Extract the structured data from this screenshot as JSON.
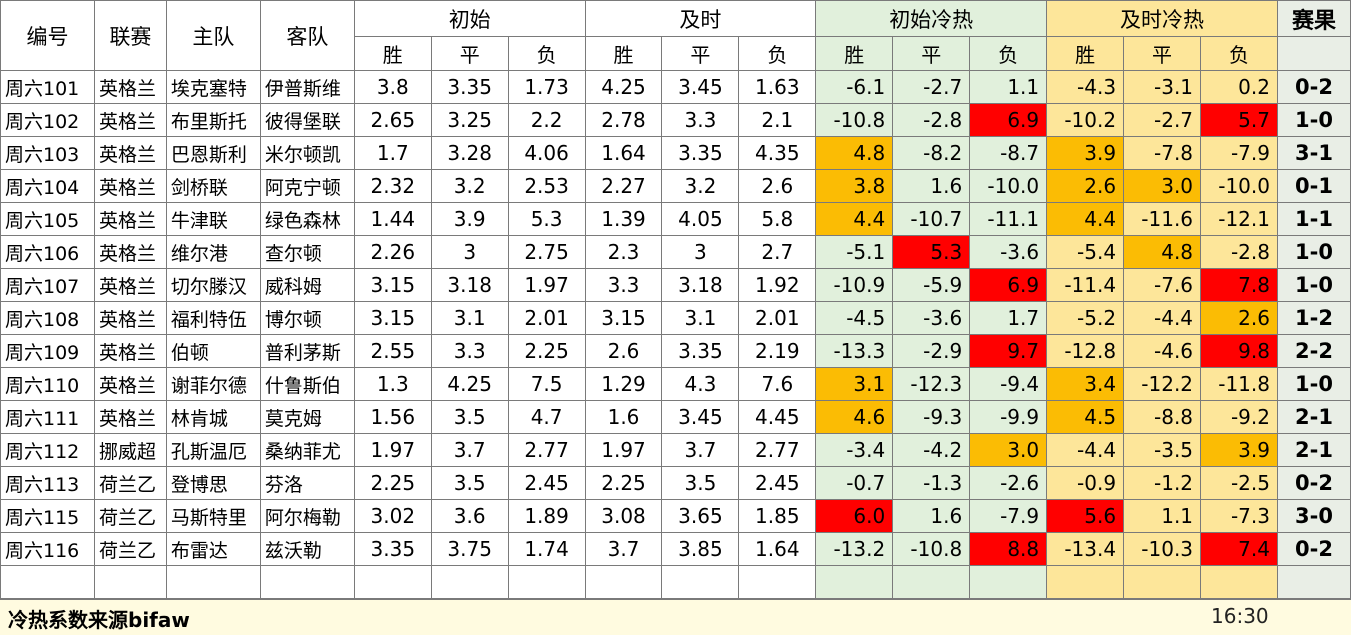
{
  "headers": {
    "id": "编号",
    "league": "联赛",
    "home": "主队",
    "away": "客队",
    "initial": "初始",
    "live": "及时",
    "initial_heat": "初始冷热",
    "live_heat": "及时冷热",
    "result": "赛果",
    "win": "胜",
    "draw": "平",
    "lose": "负"
  },
  "rows": [
    {
      "id": "周六101",
      "league": "英格兰",
      "home": "埃克塞特",
      "away": "伊普斯维",
      "i": [
        "3.8",
        "3.35",
        "1.73"
      ],
      "l": [
        "4.25",
        "3.45",
        "1.63"
      ],
      "ih": [
        "-6.1",
        "-2.7",
        "1.1"
      ],
      "lh": [
        "-4.3",
        "-3.1",
        "0.2"
      ],
      "r": "0-2"
    },
    {
      "id": "周六102",
      "league": "英格兰",
      "home": "布里斯托",
      "away": "彼得堡联",
      "i": [
        "2.65",
        "3.25",
        "2.2"
      ],
      "l": [
        "2.78",
        "3.3",
        "2.1"
      ],
      "ih": [
        "-10.8",
        "-2.8",
        "6.9"
      ],
      "lh": [
        "-10.2",
        "-2.7",
        "5.7"
      ],
      "r": "1-0"
    },
    {
      "id": "周六103",
      "league": "英格兰",
      "home": "巴恩斯利",
      "away": "米尔顿凯",
      "i": [
        "1.7",
        "3.28",
        "4.06"
      ],
      "l": [
        "1.64",
        "3.35",
        "4.35"
      ],
      "ih": [
        "4.8",
        "-8.2",
        "-8.7"
      ],
      "lh": [
        "3.9",
        "-7.8",
        "-7.9"
      ],
      "r": "3-1"
    },
    {
      "id": "周六104",
      "league": "英格兰",
      "home": "剑桥联",
      "away": "阿克宁顿",
      "i": [
        "2.32",
        "3.2",
        "2.53"
      ],
      "l": [
        "2.27",
        "3.2",
        "2.6"
      ],
      "ih": [
        "3.8",
        "1.6",
        "-10.0"
      ],
      "lh": [
        "2.6",
        "3.0",
        "-10.0"
      ],
      "r": "0-1"
    },
    {
      "id": "周六105",
      "league": "英格兰",
      "home": "牛津联",
      "away": "绿色森林",
      "i": [
        "1.44",
        "3.9",
        "5.3"
      ],
      "l": [
        "1.39",
        "4.05",
        "5.8"
      ],
      "ih": [
        "4.4",
        "-10.7",
        "-11.1"
      ],
      "lh": [
        "4.4",
        "-11.6",
        "-12.1"
      ],
      "r": "1-1"
    },
    {
      "id": "周六106",
      "league": "英格兰",
      "home": "维尔港",
      "away": "查尔顿",
      "i": [
        "2.26",
        "3",
        "2.75"
      ],
      "l": [
        "2.3",
        "3",
        "2.7"
      ],
      "ih": [
        "-5.1",
        "5.3",
        "-3.6"
      ],
      "lh": [
        "-5.4",
        "4.8",
        "-2.8"
      ],
      "r": "1-0"
    },
    {
      "id": "周六107",
      "league": "英格兰",
      "home": "切尔滕汉",
      "away": "威科姆",
      "i": [
        "3.15",
        "3.18",
        "1.97"
      ],
      "l": [
        "3.3",
        "3.18",
        "1.92"
      ],
      "ih": [
        "-10.9",
        "-5.9",
        "6.9"
      ],
      "lh": [
        "-11.4",
        "-7.6",
        "7.8"
      ],
      "r": "1-0"
    },
    {
      "id": "周六108",
      "league": "英格兰",
      "home": "福利特伍",
      "away": "博尔顿",
      "i": [
        "3.15",
        "3.1",
        "2.01"
      ],
      "l": [
        "3.15",
        "3.1",
        "2.01"
      ],
      "ih": [
        "-4.5",
        "-3.6",
        "1.7"
      ],
      "lh": [
        "-5.2",
        "-4.4",
        "2.6"
      ],
      "r": "1-2"
    },
    {
      "id": "周六109",
      "league": "英格兰",
      "home": "伯顿",
      "away": "普利茅斯",
      "i": [
        "2.55",
        "3.3",
        "2.25"
      ],
      "l": [
        "2.6",
        "3.35",
        "2.19"
      ],
      "ih": [
        "-13.3",
        "-2.9",
        "9.7"
      ],
      "lh": [
        "-12.8",
        "-4.6",
        "9.8"
      ],
      "r": "2-2"
    },
    {
      "id": "周六110",
      "league": "英格兰",
      "home": "谢菲尔德",
      "away": "什鲁斯伯",
      "i": [
        "1.3",
        "4.25",
        "7.5"
      ],
      "l": [
        "1.29",
        "4.3",
        "7.6"
      ],
      "ih": [
        "3.1",
        "-12.3",
        "-9.4"
      ],
      "lh": [
        "3.4",
        "-12.2",
        "-11.8"
      ],
      "r": "1-0"
    },
    {
      "id": "周六111",
      "league": "英格兰",
      "home": "林肯城",
      "away": "莫克姆",
      "i": [
        "1.56",
        "3.5",
        "4.7"
      ],
      "l": [
        "1.6",
        "3.45",
        "4.45"
      ],
      "ih": [
        "4.6",
        "-9.3",
        "-9.9"
      ],
      "lh": [
        "4.5",
        "-8.8",
        "-9.2"
      ],
      "r": "2-1"
    },
    {
      "id": "周六112",
      "league": "挪威超",
      "home": "孔斯温厄",
      "away": "桑纳菲尤",
      "i": [
        "1.97",
        "3.7",
        "2.77"
      ],
      "l": [
        "1.97",
        "3.7",
        "2.77"
      ],
      "ih": [
        "-3.4",
        "-4.2",
        "3.0"
      ],
      "lh": [
        "-4.4",
        "-3.5",
        "3.9"
      ],
      "r": "2-1"
    },
    {
      "id": "周六113",
      "league": "荷兰乙",
      "home": "登博思",
      "away": "芬洛",
      "i": [
        "2.25",
        "3.5",
        "2.45"
      ],
      "l": [
        "2.25",
        "3.5",
        "2.45"
      ],
      "ih": [
        "-0.7",
        "-1.3",
        "-2.6"
      ],
      "lh": [
        "-0.9",
        "-1.2",
        "-2.5"
      ],
      "r": "0-2"
    },
    {
      "id": "周六115",
      "league": "荷兰乙",
      "home": "马斯特里",
      "away": "阿尔梅勒",
      "i": [
        "3.02",
        "3.6",
        "1.89"
      ],
      "l": [
        "3.08",
        "3.65",
        "1.85"
      ],
      "ih": [
        "6.0",
        "1.6",
        "-7.9"
      ],
      "lh": [
        "5.6",
        "1.1",
        "-7.3"
      ],
      "r": "3-0"
    },
    {
      "id": "周六116",
      "league": "荷兰乙",
      "home": "布雷达",
      "away": "兹沃勒",
      "i": [
        "3.35",
        "3.75",
        "1.74"
      ],
      "l": [
        "3.7",
        "3.85",
        "1.64"
      ],
      "ih": [
        "-13.2",
        "-10.8",
        "8.8"
      ],
      "lh": [
        "-13.4",
        "-10.3",
        "7.4"
      ],
      "r": "0-2"
    }
  ],
  "highlights": {
    "orange": "#fbbc04",
    "red": "#ff0000"
  },
  "footer": {
    "source": "冷热系数来源bifaw",
    "time": "16:30"
  }
}
